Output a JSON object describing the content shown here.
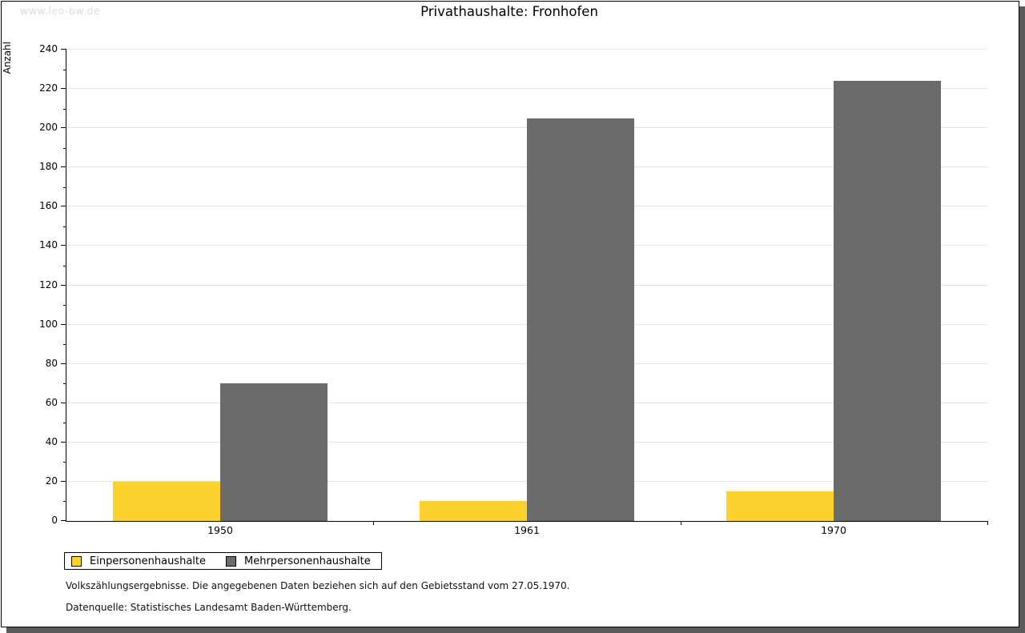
{
  "watermark": "www.leo-bw.de",
  "title": "Privathaushalte: Fronhofen",
  "chart_data": {
    "type": "bar",
    "title": "Privathaushalte: Fronhofen",
    "xlabel": "",
    "ylabel": "Anzahl",
    "categories": [
      "1950",
      "1961",
      "1970"
    ],
    "series": [
      {
        "name": "Einpersonenhaushalte",
        "color": "#FCD32E",
        "values": [
          20,
          10,
          15
        ]
      },
      {
        "name": "Mehrpersonenhaushalte",
        "color": "#6B6B6B",
        "values": [
          70,
          205,
          224
        ]
      }
    ],
    "ylim": [
      0,
      240
    ],
    "ytick_step": 20,
    "minor_tick_step": 10,
    "grid": true,
    "gridline_color": "#e3e3e3",
    "legend_position": "bottom-left"
  },
  "footer": {
    "line1": "Volkszählungsergebnisse. Die angegebenen Daten beziehen sich auf den Gebietsstand vom 27.05.1970.",
    "line2": "Datenquelle: Statistisches Landesamt Baden-Württemberg."
  },
  "colors": {
    "shadow": "#5a5a5a",
    "watermark": "#dcdcdc",
    "axis": "#000000"
  }
}
